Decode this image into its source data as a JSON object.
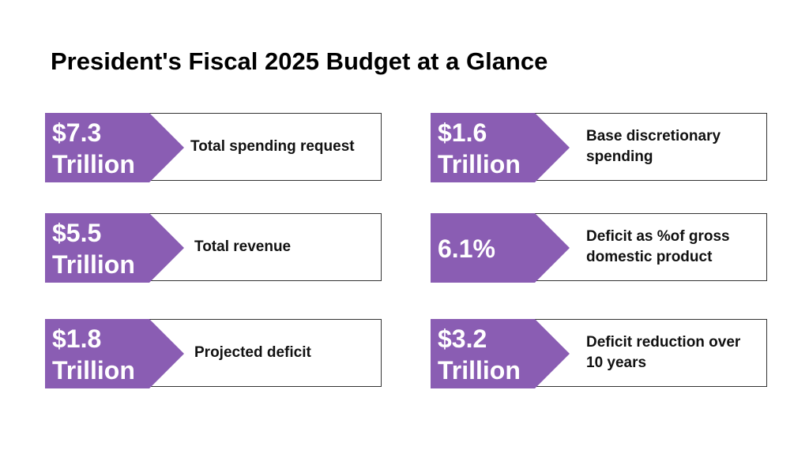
{
  "title": "President's Fiscal 2025 Budget at a Glance",
  "accent_color": "#8a5db3",
  "cards": [
    {
      "value": "$7.3 Trillion",
      "label": "Total spending request"
    },
    {
      "value": "$1.6 Trillion",
      "label": "Base discretionary spending"
    },
    {
      "value": "$5.5 Trillion",
      "label": "Total revenue"
    },
    {
      "value": "6.1%",
      "label": "Deficit as %of gross domestic product"
    },
    {
      "value": "$1.8 Trillion",
      "label": "Projected deficit"
    },
    {
      "value": "$3.2 Trillion",
      "label": "Deficit reduction over 10 years"
    }
  ]
}
